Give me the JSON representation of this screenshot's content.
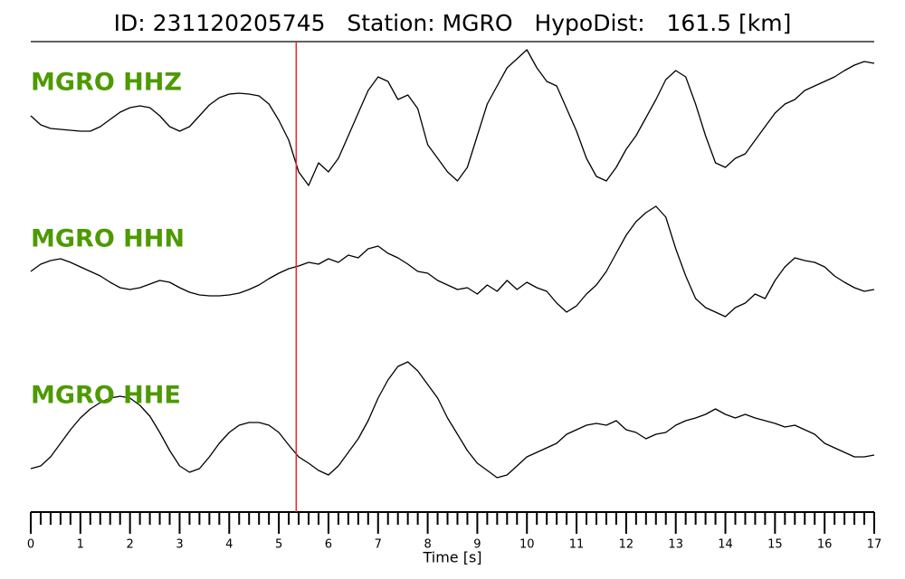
{
  "chart_data": {
    "type": "line",
    "title": "ID: 231120205745   Station: MGRO   HypoDist:   161.5 [km]",
    "x_label": "Time [s]",
    "xlim": [
      0,
      17
    ],
    "xticks": [
      0,
      1,
      2,
      3,
      4,
      5,
      6,
      7,
      8,
      9,
      10,
      11,
      12,
      13,
      14,
      15,
      16,
      17
    ],
    "xminorticks": [
      0.2,
      0.4,
      0.6,
      0.8,
      1.2,
      1.4,
      1.6,
      1.8,
      2.2,
      2.4,
      2.6,
      2.8,
      3.2,
      3.4,
      3.6,
      3.8,
      4.2,
      4.4,
      4.6,
      4.8,
      5.2,
      5.4,
      5.6,
      5.8,
      6.2,
      6.4,
      6.6,
      6.8,
      7.2,
      7.4,
      7.6,
      7.8,
      8.2,
      8.4,
      8.6,
      8.8,
      9.2,
      9.4,
      9.6,
      9.8,
      10.2,
      10.4,
      10.6,
      10.8,
      11.2,
      11.4,
      11.6,
      11.8,
      12.2,
      12.4,
      12.6,
      12.8,
      13.2,
      13.4,
      13.6,
      13.8,
      14.2,
      14.4,
      14.6,
      14.8,
      15.2,
      15.4,
      15.6,
      15.8,
      16.2,
      16.4,
      16.6,
      16.8
    ],
    "pick_time": 5.35,
    "pick_color": "#e8262c",
    "x": [
      0,
      0.2,
      0.4,
      0.6,
      0.8,
      1,
      1.2,
      1.4,
      1.6,
      1.8,
      2,
      2.2,
      2.4,
      2.6,
      2.8,
      3,
      3.2,
      3.4,
      3.6,
      3.8,
      4,
      4.2,
      4.4,
      4.6,
      4.8,
      5,
      5.2,
      5.4,
      5.6,
      5.8,
      6,
      6.2,
      6.4,
      6.6,
      6.8,
      7,
      7.2,
      7.4,
      7.6,
      7.8,
      8,
      8.2,
      8.4,
      8.6,
      8.8,
      9,
      9.2,
      9.4,
      9.6,
      9.8,
      10,
      10.2,
      10.4,
      10.6,
      10.8,
      11,
      11.2,
      11.4,
      11.6,
      11.8,
      12,
      12.2,
      12.4,
      12.6,
      12.8,
      13,
      13.2,
      13.4,
      13.6,
      13.8,
      14,
      14.2,
      14.4,
      14.6,
      14.8,
      15,
      15.2,
      15.4,
      15.6,
      15.8,
      16,
      16.2,
      16.4,
      16.6,
      16.8,
      17
    ],
    "series": [
      {
        "name": "MGRO HHZ",
        "color": "#000000",
        "ylim": [
          -85,
          85
        ],
        "values": [
          5,
          -5,
          -9,
          -10,
          -11,
          -12,
          -12,
          -7,
          1,
          9,
          14,
          16,
          14,
          5,
          -7,
          -12,
          -7,
          5,
          17,
          25,
          29,
          30,
          29,
          27,
          18,
          0,
          -22,
          -57,
          -72,
          -47,
          -57,
          -42,
          -17,
          8,
          33,
          48,
          43,
          23,
          28,
          13,
          -27,
          -42,
          -57,
          -67,
          -52,
          -17,
          18,
          38,
          58,
          68,
          78,
          58,
          43,
          38,
          13,
          -12,
          -42,
          -62,
          -67,
          -52,
          -32,
          -17,
          3,
          23,
          45,
          55,
          48,
          18,
          -17,
          -47,
          -52,
          -42,
          -37,
          -22,
          -7,
          8,
          18,
          23,
          33,
          38,
          43,
          48,
          55,
          61,
          65,
          63
        ]
      },
      {
        "name": "MGRO HHN",
        "color": "#000000",
        "ylim": [
          -72,
          72
        ],
        "values": [
          -9,
          -1,
          3,
          5,
          1,
          -4,
          -9,
          -14,
          -21,
          -27,
          -29,
          -27,
          -23,
          -19,
          -21,
          -27,
          -32,
          -35,
          -36,
          -36,
          -35,
          -33,
          -29,
          -24,
          -17,
          -11,
          -6,
          -3,
          1,
          -1,
          5,
          1,
          9,
          6,
          16,
          19,
          11,
          6,
          -1,
          -9,
          -11,
          -19,
          -24,
          -29,
          -27,
          -34,
          -24,
          -31,
          -19,
          -29,
          -21,
          -27,
          -31,
          -44,
          -54,
          -47,
          -34,
          -24,
          -9,
          11,
          31,
          46,
          56,
          63,
          51,
          16,
          -14,
          -39,
          -49,
          -54,
          -59,
          -49,
          -44,
          -34,
          -39,
          -19,
          -4,
          6,
          3,
          1,
          -4,
          -14,
          -21,
          -27,
          -31,
          -29
        ]
      },
      {
        "name": "MGRO HHE",
        "color": "#000000",
        "ylim": [
          -75,
          75
        ],
        "values": [
          -51,
          -48,
          -38,
          -23,
          -8,
          5,
          15,
          22,
          27,
          29,
          27,
          19,
          7,
          -11,
          -31,
          -48,
          -55,
          -51,
          -38,
          -23,
          -11,
          -3,
          0,
          0,
          -3,
          -11,
          -25,
          -38,
          -45,
          -53,
          -58,
          -48,
          -33,
          -18,
          2,
          27,
          47,
          62,
          67,
          57,
          42,
          27,
          5,
          -13,
          -31,
          -45,
          -53,
          -61,
          -58,
          -48,
          -38,
          -33,
          -28,
          -23,
          -13,
          -8,
          -3,
          -1,
          -3,
          2,
          -8,
          -11,
          -18,
          -13,
          -11,
          -3,
          2,
          5,
          9,
          15,
          9,
          5,
          9,
          5,
          2,
          -1,
          -5,
          -3,
          -8,
          -13,
          -23,
          -28,
          -33,
          -38,
          -38,
          -36
        ]
      }
    ]
  }
}
